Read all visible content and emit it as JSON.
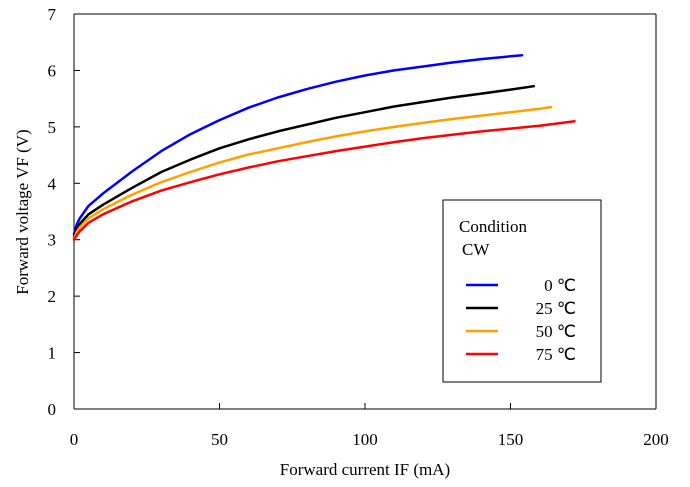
{
  "chart_data": {
    "type": "line",
    "title": "",
    "xlabel": "Forward current IF (mA)",
    "ylabel": "Forward voltage VF (V)",
    "xlim": [
      0,
      200
    ],
    "ylim": [
      0,
      7
    ],
    "xticks": [
      "0",
      "50",
      "100",
      "150",
      "200"
    ],
    "yticks": [
      "0",
      "1",
      "2",
      "3",
      "4",
      "5",
      "6",
      "7"
    ],
    "grid": false,
    "legend": {
      "placement": "lower-right",
      "title_line1": "Condition",
      "title_line2": "CW"
    },
    "series": [
      {
        "name": "0 ℃",
        "color": "#0000ff",
        "x": [
          0,
          1,
          2,
          5,
          10,
          20,
          30,
          40,
          50,
          60,
          70,
          80,
          90,
          100,
          110,
          120,
          130,
          140,
          150,
          154
        ],
        "y": [
          3.1,
          3.28,
          3.38,
          3.6,
          3.82,
          4.21,
          4.57,
          4.87,
          5.12,
          5.34,
          5.52,
          5.67,
          5.8,
          5.91,
          6.0,
          6.07,
          6.14,
          6.2,
          6.25,
          6.27
        ]
      },
      {
        "name": "25 ℃",
        "color": "#000000",
        "x": [
          0,
          1,
          2,
          5,
          10,
          20,
          30,
          40,
          50,
          60,
          70,
          80,
          90,
          100,
          110,
          120,
          130,
          140,
          150,
          158
        ],
        "y": [
          3.05,
          3.2,
          3.28,
          3.45,
          3.62,
          3.92,
          4.2,
          4.42,
          4.62,
          4.78,
          4.92,
          5.04,
          5.16,
          5.26,
          5.36,
          5.44,
          5.52,
          5.59,
          5.66,
          5.72
        ]
      },
      {
        "name": "50 ℃",
        "color": "#ffa000",
        "x": [
          0,
          1,
          2,
          5,
          10,
          20,
          30,
          40,
          50,
          60,
          70,
          80,
          90,
          100,
          110,
          120,
          130,
          140,
          150,
          160,
          164
        ],
        "y": [
          3.02,
          3.14,
          3.22,
          3.38,
          3.54,
          3.8,
          4.02,
          4.2,
          4.37,
          4.51,
          4.62,
          4.73,
          4.83,
          4.92,
          5.0,
          5.07,
          5.14,
          5.2,
          5.26,
          5.32,
          5.35
        ]
      },
      {
        "name": "75 ℃",
        "color": "#ff0000",
        "x": [
          0,
          1,
          2,
          5,
          10,
          20,
          30,
          40,
          50,
          60,
          70,
          80,
          90,
          100,
          110,
          120,
          130,
          140,
          150,
          160,
          172
        ],
        "y": [
          3.0,
          3.08,
          3.15,
          3.3,
          3.45,
          3.68,
          3.87,
          4.02,
          4.16,
          4.28,
          4.39,
          4.48,
          4.57,
          4.65,
          4.73,
          4.8,
          4.86,
          4.92,
          4.97,
          5.02,
          5.1
        ]
      }
    ]
  }
}
